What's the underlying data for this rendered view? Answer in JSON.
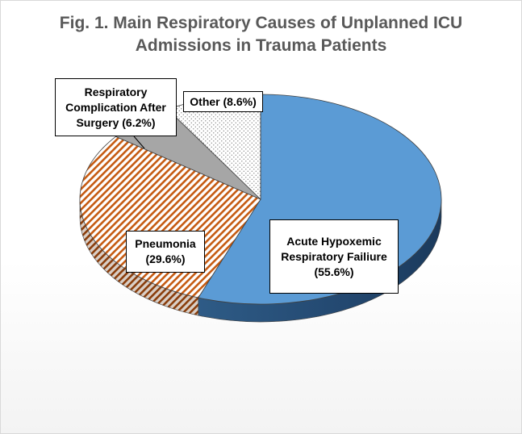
{
  "chart_data": {
    "type": "pie",
    "title_lines": [
      "Fig. 1. Main Respiratory Causes of Unplanned ICU",
      "Admissions in Trauma Patients"
    ],
    "slices": [
      {
        "label_lines": [
          "Acute Hypoxemic",
          "Respiratory Failiure",
          "(55.6%)"
        ],
        "value": 55.6,
        "color": "#5b9bd5",
        "pattern": "solid"
      },
      {
        "label_lines": [
          "Pneumonia",
          "(29.6%)"
        ],
        "value": 29.6,
        "color": "#c55a11",
        "pattern": "diagonal-stripes"
      },
      {
        "label_lines": [
          "Respiratory",
          "Complication After",
          "Surgery (6.2%)"
        ],
        "value": 6.2,
        "color": "#a6a6a6",
        "pattern": "solid"
      },
      {
        "label_lines": [
          "Other (8.6%)"
        ],
        "value": 8.6,
        "color": "#bfbfbf",
        "pattern": "dots"
      }
    ],
    "legend": "none",
    "style": "3d-pie"
  }
}
